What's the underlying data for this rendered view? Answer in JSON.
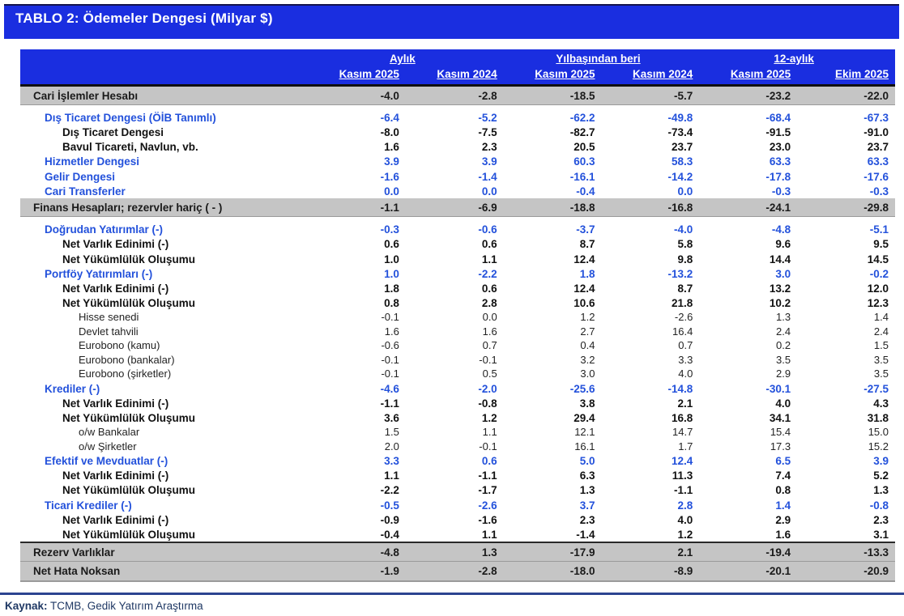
{
  "title": "TABLO 2: Ödemeler Dengesi (Milyar $)",
  "colors": {
    "header_blue": "#1a2ee0",
    "section_row_gray": "#c5c5c5",
    "blue_text": "#2351db",
    "footer_navy": "#1f3864",
    "footer_line_blue": "#2c4390"
  },
  "table": {
    "group_headers": [
      {
        "label": "Aylık"
      },
      {
        "label": "Yılbaşından beri"
      },
      {
        "label": "12-aylık"
      }
    ],
    "column_headers": [
      "Kasım 2025",
      "Kasım 2024",
      "Kasım 2025",
      "Kasım 2024",
      "Kasım 2025",
      "Ekim 2025"
    ],
    "rows": [
      {
        "label": "Cari İşlemler Hesabı",
        "style": "section",
        "values": [
          "-4.0",
          "-2.8",
          "-18.5",
          "-5.7",
          "-23.2",
          "-22.0"
        ]
      },
      {
        "label": "Dış Ticaret Dengesi (ÖİB Tanımlı)",
        "style": "blue",
        "gap": true,
        "values": [
          "-6.4",
          "-5.2",
          "-62.2",
          "-49.8",
          "-68.4",
          "-67.3"
        ]
      },
      {
        "label": "Dış Ticaret Dengesi",
        "style": "bold2",
        "values": [
          "-8.0",
          "-7.5",
          "-82.7",
          "-73.4",
          "-91.5",
          "-91.0"
        ]
      },
      {
        "label": "Bavul Ticareti, Navlun, vb.",
        "style": "bold2",
        "values": [
          "1.6",
          "2.3",
          "20.5",
          "23.7",
          "23.0",
          "23.7"
        ]
      },
      {
        "label": "Hizmetler Dengesi",
        "style": "blue",
        "values": [
          "3.9",
          "3.9",
          "60.3",
          "58.3",
          "63.3",
          "63.3"
        ]
      },
      {
        "label": "Gelir Dengesi",
        "style": "blue",
        "values": [
          "-1.6",
          "-1.4",
          "-16.1",
          "-14.2",
          "-17.8",
          "-17.6"
        ]
      },
      {
        "label": "Cari Transferler",
        "style": "blue",
        "values": [
          "0.0",
          "0.0",
          "-0.4",
          "0.0",
          "-0.3",
          "-0.3"
        ]
      },
      {
        "label": "Finans Hesapları; rezervler hariç ( - )",
        "style": "section",
        "values": [
          "-1.1",
          "-6.9",
          "-18.8",
          "-16.8",
          "-24.1",
          "-29.8"
        ]
      },
      {
        "label": "Doğrudan Yatırımlar (-)",
        "style": "blue",
        "gap": true,
        "values": [
          "-0.3",
          "-0.6",
          "-3.7",
          "-4.0",
          "-4.8",
          "-5.1"
        ]
      },
      {
        "label": "Net Varlık Edinimi (-)",
        "style": "bold2",
        "values": [
          "0.6",
          "0.6",
          "8.7",
          "5.8",
          "9.6",
          "9.5"
        ]
      },
      {
        "label": "Net Yükümlülük Oluşumu",
        "style": "bold2",
        "values": [
          "1.0",
          "1.1",
          "12.4",
          "9.8",
          "14.4",
          "14.5"
        ]
      },
      {
        "label": "Portföy Yatırımları (-)",
        "style": "blue",
        "values": [
          "1.0",
          "-2.2",
          "1.8",
          "-13.2",
          "3.0",
          "-0.2"
        ]
      },
      {
        "label": "Net Varlık Edinimi (-)",
        "style": "bold2",
        "values": [
          "1.8",
          "0.6",
          "12.4",
          "8.7",
          "13.2",
          "12.0"
        ]
      },
      {
        "label": "Net Yükümlülük Oluşumu",
        "style": "bold2",
        "values": [
          "0.8",
          "2.8",
          "10.6",
          "21.8",
          "10.2",
          "12.3"
        ]
      },
      {
        "label": "Hisse senedi",
        "style": "plain",
        "values": [
          "-0.1",
          "0.0",
          "1.2",
          "-2.6",
          "1.3",
          "1.4"
        ]
      },
      {
        "label": "Devlet tahvili",
        "style": "plain",
        "values": [
          "1.6",
          "1.6",
          "2.7",
          "16.4",
          "2.4",
          "2.4"
        ]
      },
      {
        "label": "Eurobono (kamu)",
        "style": "plain",
        "values": [
          "-0.6",
          "0.7",
          "0.4",
          "0.7",
          "0.2",
          "1.5"
        ]
      },
      {
        "label": "Eurobono (bankalar)",
        "style": "plain",
        "values": [
          "-0.1",
          "-0.1",
          "3.2",
          "3.3",
          "3.5",
          "3.5"
        ]
      },
      {
        "label": "Eurobono (şirketler)",
        "style": "plain",
        "values": [
          "-0.1",
          "0.5",
          "3.0",
          "4.0",
          "2.9",
          "3.5"
        ]
      },
      {
        "label": "Krediler (-)",
        "style": "blue",
        "values": [
          "-4.6",
          "-2.0",
          "-25.6",
          "-14.8",
          "-30.1",
          "-27.5"
        ]
      },
      {
        "label": "Net Varlık Edinimi (-)",
        "style": "bold2",
        "values": [
          "-1.1",
          "-0.8",
          "3.8",
          "2.1",
          "4.0",
          "4.3"
        ]
      },
      {
        "label": "Net Yükümlülük Oluşumu",
        "style": "bold2",
        "values": [
          "3.6",
          "1.2",
          "29.4",
          "16.8",
          "34.1",
          "31.8"
        ]
      },
      {
        "label": "o/w Bankalar",
        "style": "plain",
        "values": [
          "1.5",
          "1.1",
          "12.1",
          "14.7",
          "15.4",
          "15.0"
        ]
      },
      {
        "label": "o/w Şirketler",
        "style": "plain",
        "values": [
          "2.0",
          "-0.1",
          "16.1",
          "1.7",
          "17.3",
          "15.2"
        ]
      },
      {
        "label": "Efektif ve Mevduatlar (-)",
        "style": "blue",
        "values": [
          "3.3",
          "0.6",
          "5.0",
          "12.4",
          "6.5",
          "3.9"
        ]
      },
      {
        "label": "Net Varlık Edinimi (-)",
        "style": "bold2",
        "values": [
          "1.1",
          "-1.1",
          "6.3",
          "11.3",
          "7.4",
          "5.2"
        ]
      },
      {
        "label": "Net Yükümlülük Oluşumu",
        "style": "bold2",
        "values": [
          "-2.2",
          "-1.7",
          "1.3",
          "-1.1",
          "0.8",
          "1.3"
        ]
      },
      {
        "label": "Ticari Krediler (-)",
        "style": "blue",
        "values": [
          "-0.5",
          "-2.6",
          "3.7",
          "2.8",
          "1.4",
          "-0.8"
        ]
      },
      {
        "label": "Net Varlık Edinimi (-)",
        "style": "bold2",
        "values": [
          "-0.9",
          "-1.6",
          "2.3",
          "4.0",
          "2.9",
          "2.3"
        ]
      },
      {
        "label": "Net Yükümlülük Oluşumu",
        "style": "bold2",
        "values": [
          "-0.4",
          "1.1",
          "-1.4",
          "1.2",
          "1.6",
          "3.1"
        ]
      },
      {
        "label": "Rezerv Varlıklar",
        "style": "section",
        "values": [
          "-4.8",
          "1.3",
          "-17.9",
          "2.1",
          "-19.4",
          "-13.3"
        ]
      },
      {
        "label": "Net Hata Noksan",
        "style": "section",
        "values": [
          "-1.9",
          "-2.8",
          "-18.0",
          "-8.9",
          "-20.1",
          "-20.9"
        ]
      }
    ]
  },
  "footer": {
    "source_label": "Kaynak:",
    "source_text": "TCMB, Gedik Yatırım Araştırma"
  }
}
